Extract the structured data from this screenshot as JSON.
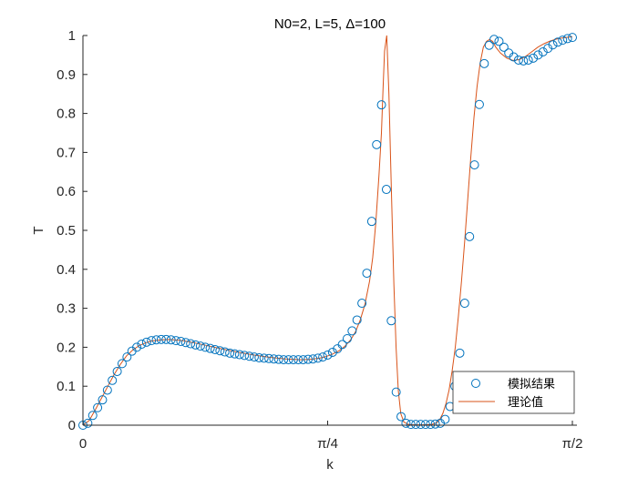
{
  "chart_data": {
    "type": "scatter",
    "title": "N0=2, L=5, Δ=100",
    "xlabel": "k",
    "ylabel": "T",
    "xlim": [
      0,
      1.5708
    ],
    "ylim": [
      0,
      1
    ],
    "x_ticks": [
      {
        "value": 0,
        "label": "0"
      },
      {
        "value": 0.7854,
        "label": "π/4"
      },
      {
        "value": 1.5708,
        "label": "π/2"
      }
    ],
    "y_ticks": [
      {
        "value": 0,
        "label": "0"
      },
      {
        "value": 0.1,
        "label": "0.1"
      },
      {
        "value": 0.2,
        "label": "0.2"
      },
      {
        "value": 0.3,
        "label": "0.3"
      },
      {
        "value": 0.4,
        "label": "0.4"
      },
      {
        "value": 0.5,
        "label": "0.5"
      },
      {
        "value": 0.6,
        "label": "0.6"
      },
      {
        "value": 0.7,
        "label": "0.7"
      },
      {
        "value": 0.8,
        "label": "0.8"
      },
      {
        "value": 0.9,
        "label": "0.9"
      },
      {
        "value": 1,
        "label": "1"
      }
    ],
    "grid": false,
    "legend_position": "bottom-right",
    "series": [
      {
        "name": "模拟结果",
        "kind": "markers",
        "color": "#0072bd",
        "x": [
          0.0,
          0.0157,
          0.0314,
          0.0471,
          0.0628,
          0.0785,
          0.0942,
          0.11,
          0.1257,
          0.1414,
          0.1571,
          0.1728,
          0.1885,
          0.2042,
          0.2199,
          0.2356,
          0.2513,
          0.267,
          0.2827,
          0.2985,
          0.3142,
          0.3299,
          0.3456,
          0.3613,
          0.377,
          0.3927,
          0.4084,
          0.4241,
          0.4398,
          0.4555,
          0.4712,
          0.4869,
          0.5027,
          0.5184,
          0.5341,
          0.5498,
          0.5655,
          0.5812,
          0.5969,
          0.6126,
          0.6283,
          0.644,
          0.6597,
          0.6754,
          0.6912,
          0.7069,
          0.7226,
          0.7383,
          0.754,
          0.7697,
          0.7854,
          0.8011,
          0.8168,
          0.8325,
          0.8482,
          0.8639,
          0.8796,
          0.8954,
          0.9111,
          0.9268,
          0.9425,
          0.9582,
          0.9739,
          0.9896,
          1.0053,
          1.021,
          1.0367,
          1.0524,
          1.0681,
          1.0838,
          1.0996,
          1.1153,
          1.131,
          1.1467,
          1.1624,
          1.1781,
          1.1938,
          1.2095,
          1.2252,
          1.2409,
          1.2566,
          1.2723,
          1.288,
          1.3038,
          1.3195,
          1.3352,
          1.3509,
          1.3666,
          1.3823,
          1.398,
          1.4137,
          1.4294,
          1.4451,
          1.4608,
          1.4765,
          1.4923,
          1.508,
          1.5237,
          1.5394,
          1.5551,
          1.5708
        ],
        "y": [
          0.0,
          0.005,
          0.025,
          0.045,
          0.065,
          0.09,
          0.115,
          0.138,
          0.158,
          0.175,
          0.19,
          0.2,
          0.208,
          0.213,
          0.217,
          0.219,
          0.22,
          0.22,
          0.219,
          0.217,
          0.215,
          0.212,
          0.209,
          0.206,
          0.203,
          0.2,
          0.197,
          0.194,
          0.191,
          0.188,
          0.185,
          0.183,
          0.181,
          0.179,
          0.177,
          0.175,
          0.173,
          0.172,
          0.171,
          0.17,
          0.169,
          0.168,
          0.168,
          0.168,
          0.168,
          0.168,
          0.169,
          0.17,
          0.172,
          0.175,
          0.18,
          0.187,
          0.196,
          0.207,
          0.222,
          0.242,
          0.27,
          0.313,
          0.39,
          0.523,
          0.72,
          0.822,
          0.605,
          0.268,
          0.085,
          0.022,
          0.005,
          0.002,
          0.002,
          0.002,
          0.002,
          0.002,
          0.003,
          0.005,
          0.015,
          0.048,
          0.1,
          0.185,
          0.313,
          0.484,
          0.668,
          0.823,
          0.928,
          0.975,
          0.99,
          0.985,
          0.97,
          0.955,
          0.945,
          0.937,
          0.935,
          0.937,
          0.942,
          0.95,
          0.958,
          0.967,
          0.976,
          0.983,
          0.988,
          0.992,
          0.995
        ]
      },
      {
        "name": "理论值",
        "kind": "line",
        "color": "#d95319",
        "x": [
          0.0,
          0.02,
          0.04,
          0.06,
          0.08,
          0.1,
          0.12,
          0.14,
          0.16,
          0.18,
          0.2,
          0.22,
          0.25,
          0.28,
          0.32,
          0.36,
          0.4,
          0.45,
          0.5,
          0.55,
          0.6,
          0.65,
          0.7,
          0.73,
          0.76,
          0.78,
          0.8,
          0.82,
          0.84,
          0.86,
          0.875,
          0.89,
          0.905,
          0.92,
          0.93,
          0.94,
          0.95,
          0.958,
          0.963,
          0.968,
          0.975,
          0.982,
          0.99,
          0.998,
          1.005,
          1.012,
          1.02,
          1.03,
          1.045,
          1.06,
          1.08,
          1.1,
          1.12,
          1.135,
          1.145,
          1.155,
          1.165,
          1.175,
          1.185,
          1.195,
          1.205,
          1.215,
          1.225,
          1.235,
          1.245,
          1.255,
          1.265,
          1.275,
          1.285,
          1.295,
          1.305,
          1.315,
          1.325,
          1.34,
          1.36,
          1.38,
          1.4,
          1.42,
          1.44,
          1.46,
          1.48,
          1.5,
          1.52,
          1.54,
          1.56,
          1.5708
        ],
        "y": [
          0.0,
          0.012,
          0.04,
          0.07,
          0.1,
          0.13,
          0.156,
          0.178,
          0.193,
          0.204,
          0.211,
          0.216,
          0.219,
          0.22,
          0.217,
          0.211,
          0.204,
          0.195,
          0.187,
          0.18,
          0.174,
          0.17,
          0.168,
          0.169,
          0.172,
          0.176,
          0.182,
          0.19,
          0.202,
          0.22,
          0.24,
          0.27,
          0.31,
          0.37,
          0.43,
          0.52,
          0.64,
          0.75,
          0.86,
          0.96,
          1.0,
          0.85,
          0.6,
          0.36,
          0.2,
          0.09,
          0.03,
          0.008,
          0.002,
          0.001,
          0.001,
          0.001,
          0.002,
          0.006,
          0.014,
          0.03,
          0.055,
          0.09,
          0.14,
          0.2,
          0.28,
          0.37,
          0.47,
          0.58,
          0.69,
          0.79,
          0.87,
          0.93,
          0.97,
          0.985,
          0.99,
          0.985,
          0.97,
          0.955,
          0.942,
          0.936,
          0.938,
          0.946,
          0.958,
          0.97,
          0.979,
          0.986,
          0.991,
          0.994,
          0.996,
          0.997
        ]
      }
    ]
  }
}
